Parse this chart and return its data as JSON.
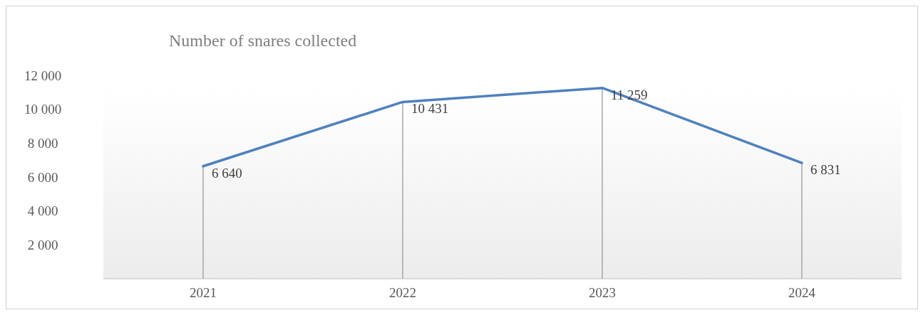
{
  "chart_data": {
    "type": "line",
    "title": "Number of snares collected",
    "categories": [
      "2021",
      "2022",
      "2023",
      "2024"
    ],
    "series": [
      {
        "color": "#4f81bd",
        "values": [
          6640,
          10431,
          11259,
          6831
        ]
      }
    ],
    "value_labels": [
      "6 640",
      "10 431",
      "11 259",
      "6 831"
    ],
    "ylim": [
      0,
      12000
    ],
    "yticks": [
      {
        "value": 2000,
        "label": "2 000"
      },
      {
        "value": 4000,
        "label": "4 000"
      },
      {
        "value": 6000,
        "label": "6 000"
      },
      {
        "value": 8000,
        "label": "8 000"
      },
      {
        "value": 10000,
        "label": "10 000"
      },
      {
        "value": 12000,
        "label": "12 000"
      }
    ],
    "grid": "x",
    "marker": "none",
    "line_style": "solid"
  }
}
